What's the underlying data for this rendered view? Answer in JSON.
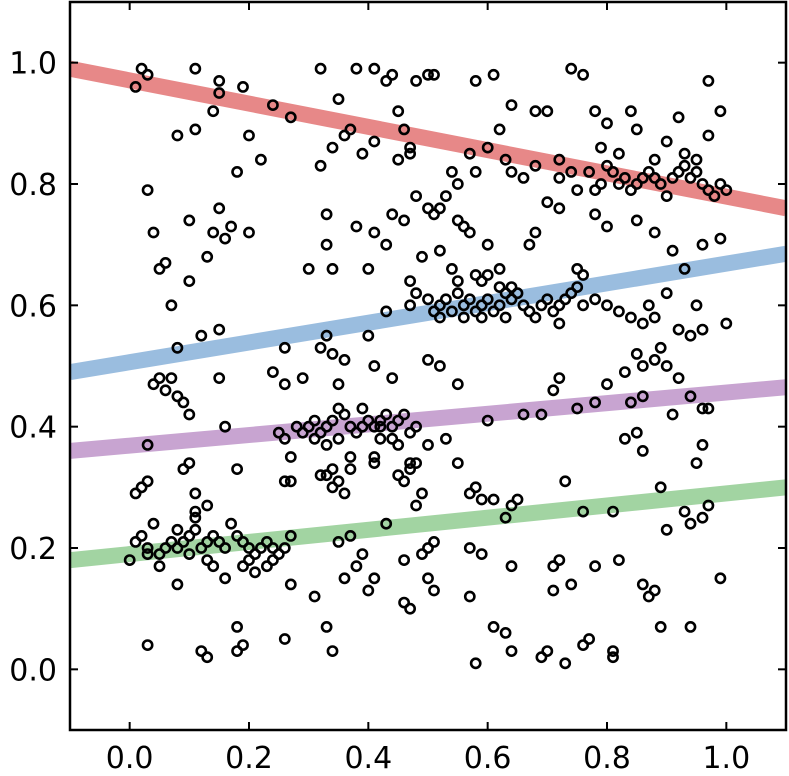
{
  "chart_data": {
    "type": "scatter",
    "title": "",
    "xlabel": "",
    "ylabel": "",
    "xlim": [
      -0.1,
      1.1
    ],
    "ylim": [
      -0.1,
      1.1
    ],
    "grid": false,
    "x_ticks": [
      "0.0",
      "0.2",
      "0.4",
      "0.6",
      "0.8",
      "1.0"
    ],
    "y_ticks": [
      "0.0",
      "0.2",
      "0.4",
      "0.6",
      "0.8",
      "1.0"
    ],
    "fit_lines": [
      {
        "color": "#e06666",
        "x": [
          -0.1,
          1.1
        ],
        "y": [
          0.99,
          0.76
        ]
      },
      {
        "color": "#7eaad6",
        "x": [
          -0.1,
          1.1
        ],
        "y": [
          0.49,
          0.685
        ]
      },
      {
        "color": "#b88bc4",
        "x": [
          -0.1,
          1.1
        ],
        "y": [
          0.36,
          0.465
        ]
      },
      {
        "color": "#88c888",
        "x": [
          -0.1,
          1.1
        ],
        "y": [
          0.18,
          0.3
        ]
      }
    ],
    "points": [
      [
        0.01,
        0.96
      ],
      [
        0.02,
        0.99
      ],
      [
        0.03,
        0.98
      ],
      [
        0.11,
        0.99
      ],
      [
        0.15,
        0.97
      ],
      [
        0.15,
        0.95
      ],
      [
        0.14,
        0.92
      ],
      [
        0.19,
        0.96
      ],
      [
        0.24,
        0.93
      ],
      [
        0.27,
        0.91
      ],
      [
        0.35,
        0.94
      ],
      [
        0.36,
        0.88
      ],
      [
        0.37,
        0.89
      ],
      [
        0.43,
        0.97
      ],
      [
        0.44,
        0.98
      ],
      [
        0.45,
        0.92
      ],
      [
        0.46,
        0.89
      ],
      [
        0.47,
        0.86
      ],
      [
        0.48,
        0.97
      ],
      [
        0.5,
        0.98
      ],
      [
        0.51,
        0.98
      ],
      [
        0.58,
        0.97
      ],
      [
        0.61,
        0.98
      ],
      [
        0.64,
        0.93
      ],
      [
        0.68,
        0.92
      ],
      [
        0.7,
        0.92
      ],
      [
        0.74,
        0.99
      ],
      [
        0.76,
        0.98
      ],
      [
        0.78,
        0.92
      ],
      [
        0.8,
        0.9
      ],
      [
        0.84,
        0.92
      ],
      [
        0.85,
        0.89
      ],
      [
        0.92,
        0.91
      ],
      [
        0.97,
        0.97
      ],
      [
        0.99,
        0.92
      ],
      [
        0.32,
        0.99
      ],
      [
        0.38,
        0.99
      ],
      [
        0.41,
        0.99
      ],
      [
        0.03,
        0.79
      ],
      [
        0.08,
        0.88
      ],
      [
        0.11,
        0.89
      ],
      [
        0.18,
        0.82
      ],
      [
        0.2,
        0.88
      ],
      [
        0.22,
        0.84
      ],
      [
        0.32,
        0.83
      ],
      [
        0.34,
        0.86
      ],
      [
        0.39,
        0.85
      ],
      [
        0.41,
        0.87
      ],
      [
        0.45,
        0.84
      ],
      [
        0.47,
        0.85
      ],
      [
        0.48,
        0.78
      ],
      [
        0.54,
        0.82
      ],
      [
        0.55,
        0.8
      ],
      [
        0.57,
        0.85
      ],
      [
        0.58,
        0.82
      ],
      [
        0.6,
        0.86
      ],
      [
        0.62,
        0.89
      ],
      [
        0.64,
        0.82
      ],
      [
        0.66,
        0.81
      ],
      [
        0.68,
        0.83
      ],
      [
        0.7,
        0.77
      ],
      [
        0.72,
        0.81
      ],
      [
        0.74,
        0.82
      ],
      [
        0.75,
        0.79
      ],
      [
        0.77,
        0.82
      ],
      [
        0.78,
        0.79
      ],
      [
        0.79,
        0.8
      ],
      [
        0.8,
        0.83
      ],
      [
        0.81,
        0.82
      ],
      [
        0.82,
        0.8
      ],
      [
        0.83,
        0.81
      ],
      [
        0.84,
        0.79
      ],
      [
        0.85,
        0.8
      ],
      [
        0.86,
        0.81
      ],
      [
        0.87,
        0.82
      ],
      [
        0.88,
        0.81
      ],
      [
        0.89,
        0.8
      ],
      [
        0.9,
        0.78
      ],
      [
        0.91,
        0.81
      ],
      [
        0.92,
        0.82
      ],
      [
        0.93,
        0.83
      ],
      [
        0.94,
        0.81
      ],
      [
        0.95,
        0.82
      ],
      [
        0.96,
        0.8
      ],
      [
        0.97,
        0.79
      ],
      [
        0.98,
        0.78
      ],
      [
        1.0,
        0.79
      ],
      [
        0.99,
        0.8
      ],
      [
        0.88,
        0.84
      ],
      [
        0.9,
        0.87
      ],
      [
        0.93,
        0.85
      ],
      [
        0.95,
        0.84
      ],
      [
        0.97,
        0.88
      ],
      [
        0.79,
        0.86
      ],
      [
        0.82,
        0.85
      ],
      [
        0.63,
        0.84
      ],
      [
        0.72,
        0.84
      ],
      [
        0.52,
        0.76
      ],
      [
        0.53,
        0.78
      ],
      [
        0.04,
        0.72
      ],
      [
        0.05,
        0.66
      ],
      [
        0.06,
        0.67
      ],
      [
        0.07,
        0.6
      ],
      [
        0.1,
        0.74
      ],
      [
        0.1,
        0.64
      ],
      [
        0.13,
        0.68
      ],
      [
        0.14,
        0.72
      ],
      [
        0.15,
        0.76
      ],
      [
        0.16,
        0.71
      ],
      [
        0.17,
        0.73
      ],
      [
        0.2,
        0.72
      ],
      [
        0.12,
        0.55
      ],
      [
        0.15,
        0.56
      ],
      [
        0.08,
        0.53
      ],
      [
        0.33,
        0.75
      ],
      [
        0.33,
        0.7
      ],
      [
        0.34,
        0.66
      ],
      [
        0.3,
        0.66
      ],
      [
        0.38,
        0.73
      ],
      [
        0.4,
        0.66
      ],
      [
        0.41,
        0.72
      ],
      [
        0.43,
        0.7
      ],
      [
        0.44,
        0.75
      ],
      [
        0.46,
        0.74
      ],
      [
        0.47,
        0.64
      ],
      [
        0.49,
        0.68
      ],
      [
        0.5,
        0.76
      ],
      [
        0.51,
        0.75
      ],
      [
        0.52,
        0.69
      ],
      [
        0.54,
        0.66
      ],
      [
        0.55,
        0.74
      ],
      [
        0.56,
        0.73
      ],
      [
        0.57,
        0.72
      ],
      [
        0.58,
        0.65
      ],
      [
        0.59,
        0.64
      ],
      [
        0.6,
        0.65
      ],
      [
        0.6,
        0.7
      ],
      [
        0.62,
        0.66
      ],
      [
        0.64,
        0.63
      ],
      [
        0.67,
        0.7
      ],
      [
        0.68,
        0.72
      ],
      [
        0.72,
        0.76
      ],
      [
        0.75,
        0.66
      ],
      [
        0.76,
        0.65
      ],
      [
        0.78,
        0.75
      ],
      [
        0.8,
        0.73
      ],
      [
        0.85,
        0.74
      ],
      [
        0.88,
        0.72
      ],
      [
        0.91,
        0.69
      ],
      [
        0.93,
        0.66
      ],
      [
        0.96,
        0.7
      ],
      [
        0.99,
        0.71
      ],
      [
        0.87,
        0.6
      ],
      [
        0.9,
        0.62
      ],
      [
        0.95,
        0.6
      ],
      [
        1.0,
        0.57
      ],
      [
        0.43,
        0.59
      ],
      [
        0.47,
        0.6
      ],
      [
        0.48,
        0.62
      ],
      [
        0.5,
        0.61
      ],
      [
        0.51,
        0.59
      ],
      [
        0.52,
        0.6
      ],
      [
        0.53,
        0.61
      ],
      [
        0.54,
        0.59
      ],
      [
        0.55,
        0.62
      ],
      [
        0.56,
        0.6
      ],
      [
        0.57,
        0.61
      ],
      [
        0.58,
        0.59
      ],
      [
        0.59,
        0.6
      ],
      [
        0.6,
        0.61
      ],
      [
        0.61,
        0.59
      ],
      [
        0.62,
        0.6
      ],
      [
        0.63,
        0.58
      ],
      [
        0.64,
        0.61
      ],
      [
        0.65,
        0.62
      ],
      [
        0.66,
        0.6
      ],
      [
        0.67,
        0.59
      ],
      [
        0.68,
        0.58
      ],
      [
        0.69,
        0.6
      ],
      [
        0.7,
        0.61
      ],
      [
        0.71,
        0.59
      ],
      [
        0.72,
        0.6
      ],
      [
        0.73,
        0.61
      ],
      [
        0.74,
        0.62
      ],
      [
        0.75,
        0.63
      ],
      [
        0.76,
        0.6
      ],
      [
        0.78,
        0.61
      ],
      [
        0.8,
        0.6
      ],
      [
        0.82,
        0.59
      ],
      [
        0.84,
        0.58
      ],
      [
        0.86,
        0.57
      ],
      [
        0.88,
        0.58
      ],
      [
        0.92,
        0.56
      ],
      [
        0.94,
        0.55
      ],
      [
        0.96,
        0.56
      ],
      [
        0.55,
        0.64
      ],
      [
        0.62,
        0.63
      ],
      [
        0.72,
        0.57
      ],
      [
        0.52,
        0.58
      ],
      [
        0.56,
        0.58
      ],
      [
        0.59,
        0.58
      ],
      [
        0.63,
        0.62
      ],
      [
        0.04,
        0.47
      ],
      [
        0.05,
        0.48
      ],
      [
        0.06,
        0.46
      ],
      [
        0.07,
        0.48
      ],
      [
        0.08,
        0.45
      ],
      [
        0.09,
        0.44
      ],
      [
        0.1,
        0.42
      ],
      [
        0.15,
        0.48
      ],
      [
        0.16,
        0.4
      ],
      [
        0.26,
        0.53
      ],
      [
        0.24,
        0.49
      ],
      [
        0.26,
        0.47
      ],
      [
        0.29,
        0.48
      ],
      [
        0.32,
        0.53
      ],
      [
        0.33,
        0.55
      ],
      [
        0.34,
        0.52
      ],
      [
        0.35,
        0.47
      ],
      [
        0.36,
        0.51
      ],
      [
        0.4,
        0.55
      ],
      [
        0.41,
        0.5
      ],
      [
        0.44,
        0.48
      ],
      [
        0.5,
        0.51
      ],
      [
        0.52,
        0.5
      ],
      [
        0.55,
        0.47
      ],
      [
        0.71,
        0.46
      ],
      [
        0.72,
        0.48
      ],
      [
        0.8,
        0.47
      ],
      [
        0.83,
        0.49
      ],
      [
        0.85,
        0.52
      ],
      [
        0.86,
        0.5
      ],
      [
        0.88,
        0.51
      ],
      [
        0.89,
        0.53
      ],
      [
        0.9,
        0.5
      ],
      [
        0.92,
        0.48
      ],
      [
        0.94,
        0.45
      ],
      [
        0.96,
        0.43
      ],
      [
        0.86,
        0.45
      ],
      [
        0.78,
        0.44
      ],
      [
        0.03,
        0.37
      ],
      [
        0.25,
        0.39
      ],
      [
        0.26,
        0.38
      ],
      [
        0.28,
        0.4
      ],
      [
        0.29,
        0.39
      ],
      [
        0.3,
        0.4
      ],
      [
        0.31,
        0.41
      ],
      [
        0.32,
        0.39
      ],
      [
        0.33,
        0.4
      ],
      [
        0.34,
        0.41
      ],
      [
        0.35,
        0.43
      ],
      [
        0.36,
        0.42
      ],
      [
        0.37,
        0.4
      ],
      [
        0.38,
        0.39
      ],
      [
        0.39,
        0.4
      ],
      [
        0.4,
        0.41
      ],
      [
        0.41,
        0.4
      ],
      [
        0.42,
        0.41
      ],
      [
        0.43,
        0.42
      ],
      [
        0.44,
        0.4
      ],
      [
        0.45,
        0.41
      ],
      [
        0.46,
        0.42
      ],
      [
        0.47,
        0.39
      ],
      [
        0.48,
        0.4
      ],
      [
        0.42,
        0.38
      ],
      [
        0.39,
        0.43
      ],
      [
        0.35,
        0.38
      ],
      [
        0.31,
        0.38
      ],
      [
        0.27,
        0.35
      ],
      [
        0.33,
        0.37
      ],
      [
        0.34,
        0.33
      ],
      [
        0.37,
        0.35
      ],
      [
        0.41,
        0.35
      ],
      [
        0.45,
        0.37
      ],
      [
        0.47,
        0.34
      ],
      [
        0.5,
        0.37
      ],
      [
        0.53,
        0.38
      ],
      [
        0.6,
        0.41
      ],
      [
        0.66,
        0.42
      ],
      [
        0.69,
        0.42
      ],
      [
        0.75,
        0.43
      ],
      [
        0.84,
        0.44
      ],
      [
        0.85,
        0.39
      ],
      [
        0.83,
        0.38
      ],
      [
        0.86,
        0.36
      ],
      [
        0.91,
        0.42
      ],
      [
        0.97,
        0.43
      ],
      [
        0.95,
        0.34
      ],
      [
        0.96,
        0.37
      ],
      [
        0.42,
        0.4
      ],
      [
        0.44,
        0.38
      ],
      [
        0.01,
        0.29
      ],
      [
        0.02,
        0.3
      ],
      [
        0.03,
        0.31
      ],
      [
        0.09,
        0.33
      ],
      [
        0.1,
        0.34
      ],
      [
        0.11,
        0.29
      ],
      [
        0.13,
        0.27
      ],
      [
        0.18,
        0.33
      ],
      [
        0.26,
        0.31
      ],
      [
        0.27,
        0.31
      ],
      [
        0.32,
        0.32
      ],
      [
        0.33,
        0.32
      ],
      [
        0.34,
        0.3
      ],
      [
        0.35,
        0.31
      ],
      [
        0.36,
        0.29
      ],
      [
        0.37,
        0.33
      ],
      [
        0.41,
        0.34
      ],
      [
        0.45,
        0.32
      ],
      [
        0.46,
        0.31
      ],
      [
        0.47,
        0.33
      ],
      [
        0.48,
        0.34
      ],
      [
        0.49,
        0.29
      ],
      [
        0.55,
        0.34
      ],
      [
        0.57,
        0.29
      ],
      [
        0.58,
        0.3
      ],
      [
        0.59,
        0.28
      ],
      [
        0.61,
        0.28
      ],
      [
        0.64,
        0.27
      ],
      [
        0.65,
        0.28
      ],
      [
        0.73,
        0.31
      ],
      [
        0.89,
        0.3
      ],
      [
        0.01,
        0.21
      ],
      [
        0.02,
        0.22
      ],
      [
        0.03,
        0.2
      ],
      [
        0.04,
        0.24
      ],
      [
        0.05,
        0.19
      ],
      [
        0.06,
        0.2
      ],
      [
        0.07,
        0.21
      ],
      [
        0.08,
        0.2
      ],
      [
        0.09,
        0.21
      ],
      [
        0.1,
        0.22
      ],
      [
        0.11,
        0.23
      ],
      [
        0.11,
        0.25
      ],
      [
        0.12,
        0.2
      ],
      [
        0.13,
        0.21
      ],
      [
        0.14,
        0.22
      ],
      [
        0.15,
        0.21
      ],
      [
        0.16,
        0.2
      ],
      [
        0.17,
        0.24
      ],
      [
        0.18,
        0.22
      ],
      [
        0.19,
        0.21
      ],
      [
        0.2,
        0.2
      ],
      [
        0.21,
        0.19
      ],
      [
        0.22,
        0.2
      ],
      [
        0.23,
        0.21
      ],
      [
        0.24,
        0.2
      ],
      [
        0.25,
        0.19
      ],
      [
        0.26,
        0.2
      ],
      [
        0.27,
        0.22
      ],
      [
        0.13,
        0.18
      ],
      [
        0.14,
        0.17
      ],
      [
        0.1,
        0.19
      ],
      [
        0.19,
        0.17
      ],
      [
        0.2,
        0.18
      ],
      [
        0.21,
        0.16
      ],
      [
        0.23,
        0.17
      ],
      [
        0.24,
        0.18
      ],
      [
        0.05,
        0.17
      ],
      [
        0.03,
        0.19
      ],
      [
        0.0,
        0.18
      ],
      [
        0.08,
        0.23
      ],
      [
        0.11,
        0.26
      ],
      [
        0.35,
        0.21
      ],
      [
        0.37,
        0.22
      ],
      [
        0.38,
        0.17
      ],
      [
        0.39,
        0.19
      ],
      [
        0.41,
        0.15
      ],
      [
        0.43,
        0.24
      ],
      [
        0.46,
        0.18
      ],
      [
        0.48,
        0.27
      ],
      [
        0.49,
        0.19
      ],
      [
        0.5,
        0.2
      ],
      [
        0.51,
        0.21
      ],
      [
        0.57,
        0.2
      ],
      [
        0.59,
        0.19
      ],
      [
        0.63,
        0.25
      ],
      [
        0.64,
        0.17
      ],
      [
        0.71,
        0.17
      ],
      [
        0.72,
        0.18
      ],
      [
        0.74,
        0.14
      ],
      [
        0.76,
        0.26
      ],
      [
        0.78,
        0.17
      ],
      [
        0.81,
        0.26
      ],
      [
        0.82,
        0.18
      ],
      [
        0.86,
        0.14
      ],
      [
        0.87,
        0.12
      ],
      [
        0.88,
        0.13
      ],
      [
        0.9,
        0.23
      ],
      [
        0.93,
        0.26
      ],
      [
        0.94,
        0.24
      ],
      [
        0.96,
        0.25
      ],
      [
        0.97,
        0.27
      ],
      [
        0.99,
        0.15
      ],
      [
        0.08,
        0.14
      ],
      [
        0.16,
        0.15
      ],
      [
        0.19,
        0.04
      ],
      [
        0.18,
        0.07
      ],
      [
        0.18,
        0.03
      ],
      [
        0.13,
        0.02
      ],
      [
        0.12,
        0.03
      ],
      [
        0.03,
        0.04
      ],
      [
        0.27,
        0.14
      ],
      [
        0.26,
        0.05
      ],
      [
        0.31,
        0.12
      ],
      [
        0.33,
        0.07
      ],
      [
        0.34,
        0.03
      ],
      [
        0.36,
        0.15
      ],
      [
        0.4,
        0.13
      ],
      [
        0.46,
        0.11
      ],
      [
        0.47,
        0.1
      ],
      [
        0.5,
        0.15
      ],
      [
        0.51,
        0.13
      ],
      [
        0.57,
        0.12
      ],
      [
        0.58,
        0.01
      ],
      [
        0.61,
        0.07
      ],
      [
        0.63,
        0.06
      ],
      [
        0.64,
        0.03
      ],
      [
        0.69,
        0.02
      ],
      [
        0.7,
        0.03
      ],
      [
        0.71,
        0.13
      ],
      [
        0.73,
        0.01
      ],
      [
        0.76,
        0.04
      ],
      [
        0.77,
        0.05
      ],
      [
        0.81,
        0.02
      ],
      [
        0.81,
        0.03
      ],
      [
        0.89,
        0.07
      ],
      [
        0.94,
        0.07
      ]
    ]
  }
}
